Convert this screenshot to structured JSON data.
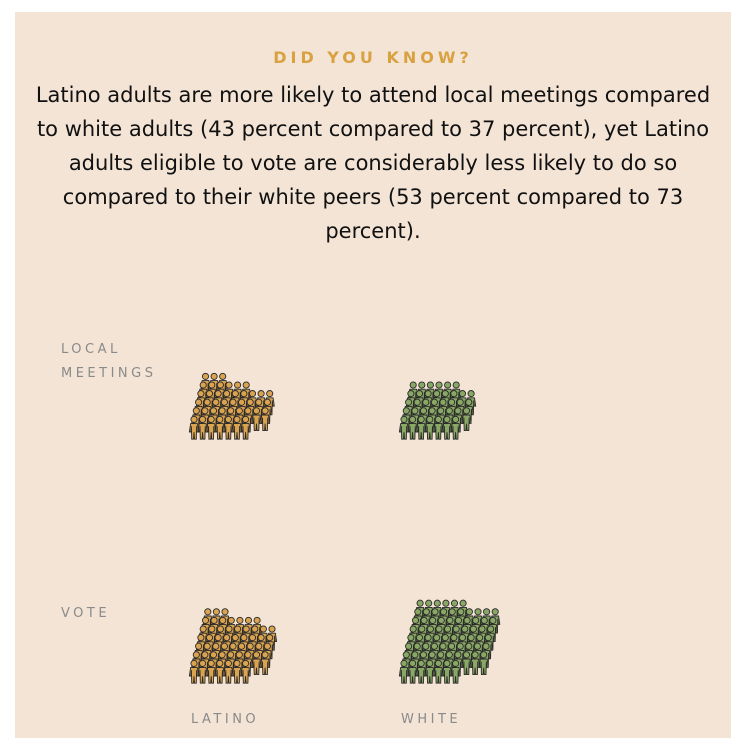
{
  "kicker": "DID YOU KNOW?",
  "body": "Latino adults are more likely to attend local meetings compared to white adults (43 percent compared to 37 percent), yet Latino adults eligible to vote are considerably less likely to do so compared to their white peers (53 percent compared to 73 percent).",
  "row_labels": {
    "meetings_line1": "LOCAL",
    "meetings_line2": "MEETINGS",
    "vote": "VOTE"
  },
  "col_labels": {
    "latino": "LATINO",
    "white": "WHITE"
  },
  "colors": {
    "latino": "#d9a350",
    "white": "#8aa865",
    "outline": "#2a2a2a",
    "background": "#f3e4d6",
    "accent": "#d9a13f"
  },
  "chart_data": {
    "type": "isotype",
    "unit": "1 figure = 1 percent",
    "categories": [
      "LOCAL MEETINGS",
      "VOTE"
    ],
    "series": [
      {
        "name": "LATINO",
        "values": [
          43,
          53
        ]
      },
      {
        "name": "WHITE",
        "values": [
          37,
          73
        ]
      }
    ]
  }
}
